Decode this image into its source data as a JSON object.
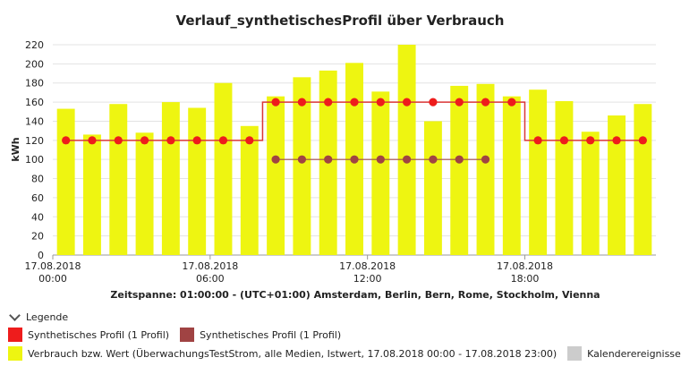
{
  "chart_data": {
    "type": "bar",
    "title": "Verlauf_synthetischesProfil über Verbrauch",
    "ylabel": "kWh",
    "xlabel": "Zeitspanne: 01:00:00 - (UTC+01:00) Amsterdam, Berlin, Bern, Rome, Stockholm, Vienna",
    "ylim": [
      0,
      220
    ],
    "yticks": [
      0,
      20,
      40,
      60,
      80,
      100,
      120,
      140,
      160,
      180,
      200,
      220
    ],
    "grid": true,
    "x_tick_labels": [
      {
        "index": 0,
        "line1": "17.08.2018",
        "line2": "00:00"
      },
      {
        "index": 6,
        "line1": "17.08.2018",
        "line2": "06:00"
      },
      {
        "index": 12,
        "line1": "17.08.2018",
        "line2": "12:00"
      },
      {
        "index": 18,
        "line1": "17.08.2018",
        "line2": "18:00"
      }
    ],
    "series": [
      {
        "name": "Verbrauch bzw. Wert (ÜberwachungsTestStrom, alle Medien, Istwert, 17.08.2018 00:00 - 17.08.2018 23:00)",
        "kind": "bar",
        "color": "#eef511",
        "values": [
          153,
          126,
          158,
          128,
          160,
          154,
          180,
          135,
          166,
          186,
          193,
          201,
          171,
          220,
          140,
          177,
          179,
          166,
          173,
          161,
          129,
          146,
          158
        ]
      },
      {
        "name": "Synthetisches Profil (1 Profil)",
        "kind": "step-line",
        "color": "#ee1c1c",
        "line_color": "#d93636",
        "values": [
          120,
          120,
          120,
          120,
          120,
          120,
          120,
          120,
          160,
          160,
          160,
          160,
          160,
          160,
          160,
          160,
          160,
          160,
          120,
          120,
          120,
          120,
          120
        ]
      },
      {
        "name": "Synthetisches Profil (1 Profil)",
        "kind": "line",
        "color": "#a04343",
        "line_color": "#9c4a4a",
        "start_index": 8,
        "values": [
          100,
          100,
          100,
          100,
          100,
          100,
          100,
          100,
          100
        ]
      }
    ]
  },
  "legend": {
    "toggle_label": "Legende",
    "items_row1": [
      {
        "label": "Synthetisches Profil (1 Profil)",
        "color": "#ee1c1c"
      },
      {
        "label": "Synthetisches Profil (1 Profil)",
        "color": "#a04343"
      }
    ],
    "items_row2": [
      {
        "label": "Verbrauch bzw. Wert (ÜberwachungsTestStrom, alle Medien, Istwert, 17.08.2018 00:00 - 17.08.2018 23:00)",
        "color": "#eef511"
      },
      {
        "label": "Kalenderereignisse",
        "color": "#cccccc"
      }
    ]
  }
}
